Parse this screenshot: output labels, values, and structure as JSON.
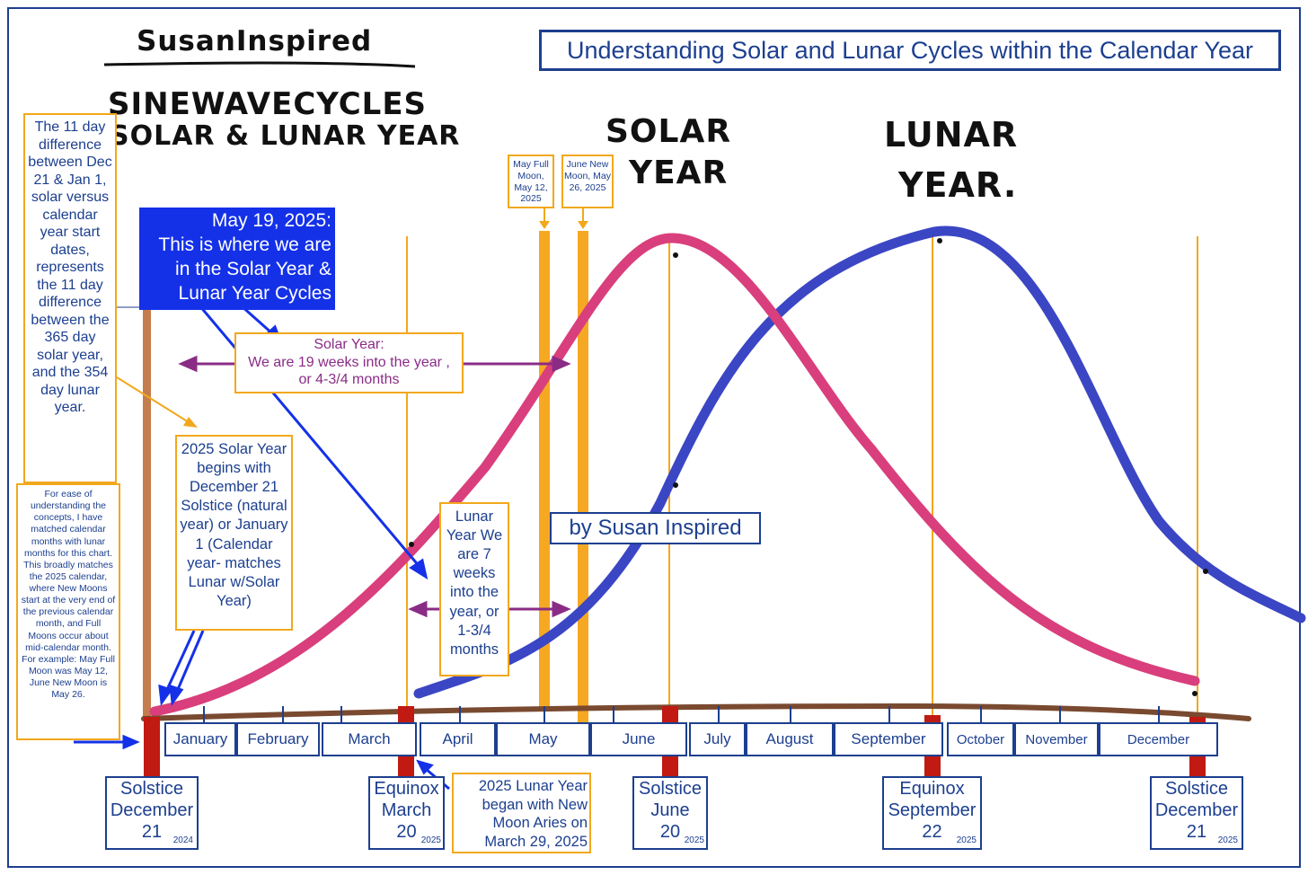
{
  "title": "Understanding Solar and Lunar Cycles within the Calendar Year",
  "handwritten": {
    "author": "SusanInspired",
    "heading_line1": "SINEWAVECYCLES",
    "heading_line2": "SOLAR & LUNAR YEAR",
    "solar_year_line1": "SOLAR",
    "solar_year_line2": "YEAR",
    "lunar_year_line1": "LUNAR",
    "lunar_year_line2": "YEAR."
  },
  "callouts": {
    "eleven_day": "The 11 day difference between Dec 21 & Jan 1, solar versus calendar year start dates, represents the 11 day difference between the 365 day solar year, and the 354 day lunar year.",
    "ease_note": "For ease of understanding the concepts, I have matched calendar months with lunar months for this chart. This broadly matches the 2025 calendar, where New Moons start at the very end of the previous calendar month, and Full Moons occur about mid-calendar month. For example: May Full Moon was May 12, June New Moon is May 26.",
    "current_date_line1": "May 19, 2025:",
    "current_date_line2": "This is where we are in the Solar Year & Lunar Year Cycles",
    "solar_start": "2025 Solar Year begins with December 21 Solstice (natural year) or January 1 (Calendar year- matches Lunar w/Solar Year)",
    "solar_progress_line1": "Solar Year:",
    "solar_progress_line2": "We are 19 weeks into the year ,",
    "solar_progress_line3": "or 4-3/4 months",
    "lunar_progress": "Lunar Year We are 7 weeks into the year, or 1-3/4 months",
    "may_full_moon": "May Full Moon, May 12, 2025",
    "june_new_moon": "June New Moon, May 26, 2025",
    "signature": "by Susan Inspired",
    "lunar_start": "2025 Lunar Year began with New Moon Aries on March 29, 2025"
  },
  "months": [
    "January",
    "February",
    "March",
    "April",
    "May",
    "June",
    "July",
    "August",
    "September",
    "October",
    "November",
    "December"
  ],
  "markers": [
    {
      "line1": "Solstice",
      "line2": "December",
      "day": "21",
      "year": "2024"
    },
    {
      "line1": "Equinox",
      "line2": "March",
      "day": "20",
      "year": "2025"
    },
    {
      "line1": "Solstice",
      "line2": "June",
      "day": "20",
      "year": "2025"
    },
    {
      "line1": "Equinox",
      "line2": "September",
      "day": "22",
      "year": "2025"
    },
    {
      "line1": "Solstice",
      "line2": "December",
      "day": "21",
      "year": "2025"
    }
  ],
  "colors": {
    "frame": "#1c3f8f",
    "solar_curve": "#d93f7c",
    "lunar_curve": "#3b46c4",
    "timeline": "#7a4a30",
    "marker_posts": "#c01a12",
    "guide_lines": "#f2a81d",
    "moon_bars": "#f7a823",
    "current_box": "#1431e8",
    "progress_arrows": "#8a2c86"
  }
}
